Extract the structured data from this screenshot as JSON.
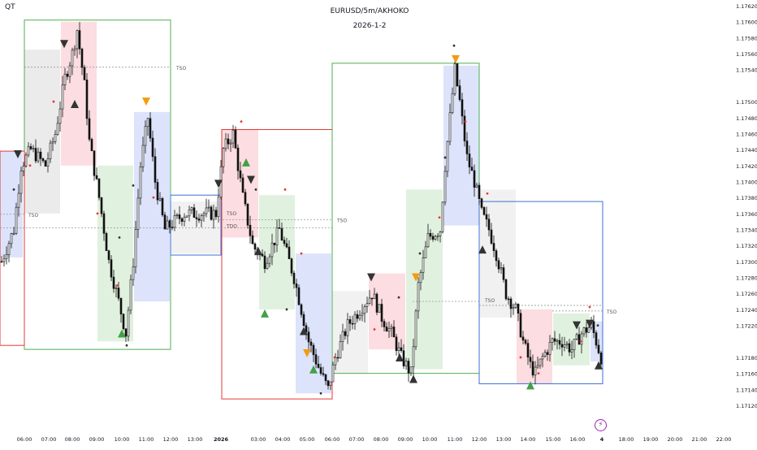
{
  "corner_label": "QT",
  "header": {
    "title": "EURUSD/5m/AKHOKO",
    "subtitle": "2026-1-2"
  },
  "chart_data": {
    "type": "candlestick",
    "symbol": "EURUSD",
    "timeframe": "5m",
    "y_ticks": [
      1.1712,
      1.1714,
      1.1716,
      1.1718,
      1.1722,
      1.1724,
      1.1726,
      1.1728,
      1.173,
      1.1732,
      1.1734,
      1.1736,
      1.1738,
      1.174,
      1.1742,
      1.1744,
      1.1746,
      1.1748,
      1.175,
      1.1754,
      1.1756,
      1.1758,
      1.176,
      1.1762
    ],
    "y_tick_labels": [
      "1.17120",
      "1.17140",
      "1.17160",
      "1.17180",
      "1.17220",
      "1.17240",
      "1.17260",
      "1.17280",
      "1.17300",
      "1.17320",
      "1.17340",
      "1.17360",
      "1.17380",
      "1.17400",
      "1.17420",
      "1.17440",
      "1.17460",
      "1.17480",
      "1.17500",
      "1.17540",
      "1.17560",
      "1.17580",
      "1.17600",
      "1.17620"
    ],
    "ylim": [
      1.17105,
      1.17625
    ],
    "x_ticks": [
      "06:00",
      "07:00",
      "08:00",
      "09:00",
      "10:00",
      "11:00",
      "12:00",
      "13:00",
      "2026",
      "03:00",
      "04:00",
      "05:00",
      "06:00",
      "07:00",
      "08:00",
      "09:00",
      "10:00",
      "11:00",
      "12:00",
      "13:00",
      "14:00",
      "15:00",
      "16:00",
      "4",
      "18:00",
      "19:00",
      "20:00",
      "21:00",
      "22:00"
    ],
    "n_bars": 247,
    "keypoints": [
      [
        0,
        1.173
      ],
      [
        5,
        1.1734
      ],
      [
        8,
        1.1742
      ],
      [
        12,
        1.1744
      ],
      [
        18,
        1.1742
      ],
      [
        22,
        1.1746
      ],
      [
        26,
        1.1753
      ],
      [
        29,
        1.1756
      ],
      [
        31,
        1.1759
      ],
      [
        34,
        1.1752
      ],
      [
        36,
        1.1745
      ],
      [
        40,
        1.1738
      ],
      [
        44,
        1.173
      ],
      [
        48,
        1.1725
      ],
      [
        51,
        1.1721
      ],
      [
        54,
        1.173
      ],
      [
        57,
        1.1742
      ],
      [
        60,
        1.1748
      ],
      [
        63,
        1.174
      ],
      [
        67,
        1.1734
      ],
      [
        75,
        1.1736
      ],
      [
        82,
        1.1736
      ],
      [
        88,
        1.1736
      ],
      [
        91,
        1.1744
      ],
      [
        95,
        1.1746
      ],
      [
        99,
        1.1738
      ],
      [
        103,
        1.1732
      ],
      [
        108,
        1.173
      ],
      [
        114,
        1.1734
      ],
      [
        120,
        1.1728
      ],
      [
        126,
        1.172
      ],
      [
        131,
        1.1716
      ],
      [
        134,
        1.1714
      ],
      [
        137,
        1.1718
      ],
      [
        142,
        1.1722
      ],
      [
        147,
        1.1724
      ],
      [
        152,
        1.1726
      ],
      [
        156,
        1.1723
      ],
      [
        160,
        1.1721
      ],
      [
        164,
        1.1718
      ],
      [
        168,
        1.1716
      ],
      [
        171,
        1.1727
      ],
      [
        175,
        1.1733
      ],
      [
        180,
        1.1734
      ],
      [
        182,
        1.1742
      ],
      [
        184,
        1.1748
      ],
      [
        186,
        1.1754
      ],
      [
        188,
        1.175
      ],
      [
        191,
        1.1743
      ],
      [
        194,
        1.174
      ],
      [
        197,
        1.1736
      ],
      [
        200,
        1.1734
      ],
      [
        203,
        1.1731
      ],
      [
        207,
        1.1726
      ],
      [
        211,
        1.1724
      ],
      [
        214,
        1.172
      ],
      [
        217,
        1.1717
      ],
      [
        219,
        1.1716
      ],
      [
        222,
        1.1718
      ],
      [
        226,
        1.172
      ],
      [
        230,
        1.172
      ],
      [
        234,
        1.1719
      ],
      [
        238,
        1.1721
      ],
      [
        242,
        1.1722
      ],
      [
        246,
        1.1718
      ]
    ],
    "annotations": [
      "TSO",
      "TSO",
      "TSO",
      "TSO",
      "TDO",
      "TSO",
      "TSO",
      "TSO",
      "TSO"
    ]
  }
}
